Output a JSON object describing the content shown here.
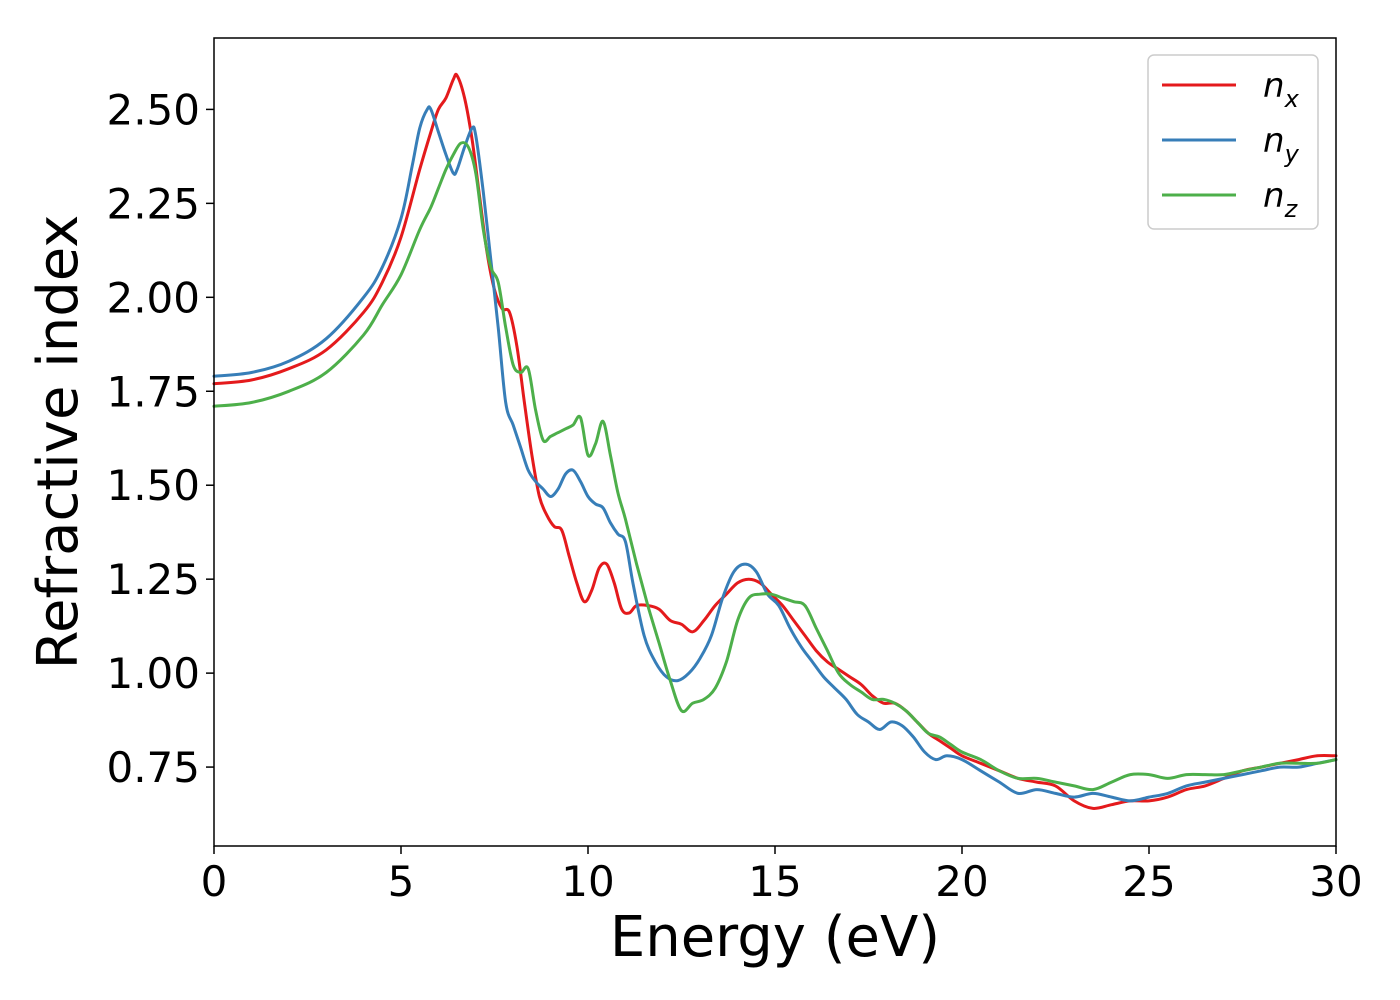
{
  "chart_data": {
    "type": "line",
    "title": "",
    "xlabel": "Energy (eV)",
    "ylabel": "Refractive index",
    "xlim": [
      0,
      30
    ],
    "ylim": [
      0.54,
      2.69
    ],
    "xticks": [
      0,
      5,
      10,
      15,
      20,
      25,
      30
    ],
    "xtick_labels": [
      "0",
      "5",
      "10",
      "15",
      "20",
      "25",
      "30"
    ],
    "yticks": [
      0.75,
      1.0,
      1.25,
      1.5,
      1.75,
      2.0,
      2.25,
      2.5
    ],
    "ytick_labels": [
      "0.75",
      "1.00",
      "1.25",
      "1.50",
      "1.75",
      "2.00",
      "2.25",
      "2.50"
    ],
    "grid": false,
    "legend_position": "top-right",
    "series": [
      {
        "name": "n_x",
        "label_base": "n",
        "label_sub": "x",
        "color": "#e41a1c",
        "x": [
          0,
          1,
          2,
          3,
          4,
          4.5,
          5,
          5.5,
          5.8,
          6.0,
          6.2,
          6.4,
          6.5,
          6.7,
          6.9,
          7.1,
          7.3,
          7.5,
          7.7,
          7.9,
          8.1,
          8.3,
          8.5,
          8.7,
          8.9,
          9.1,
          9.3,
          9.5,
          9.7,
          9.9,
          10.1,
          10.3,
          10.5,
          10.7,
          10.9,
          11.1,
          11.3,
          11.6,
          11.9,
          12.2,
          12.5,
          12.8,
          13.1,
          13.4,
          13.7,
          14.0,
          14.3,
          14.6,
          14.9,
          15.2,
          15.5,
          15.8,
          16.1,
          16.4,
          16.7,
          17.0,
          17.3,
          17.6,
          17.9,
          18.2,
          18.5,
          18.8,
          19.1,
          19.4,
          19.7,
          20.0,
          20.5,
          21.0,
          21.5,
          22.0,
          22.5,
          23.0,
          23.5,
          24.0,
          24.5,
          25.0,
          25.5,
          26.0,
          26.5,
          27.0,
          27.5,
          28.0,
          28.5,
          29.0,
          29.5,
          30.0
        ],
        "y": [
          1.77,
          1.78,
          1.81,
          1.86,
          1.96,
          2.04,
          2.16,
          2.34,
          2.44,
          2.5,
          2.53,
          2.58,
          2.59,
          2.53,
          2.42,
          2.27,
          2.12,
          2.02,
          1.97,
          1.96,
          1.87,
          1.72,
          1.58,
          1.47,
          1.42,
          1.39,
          1.38,
          1.31,
          1.24,
          1.19,
          1.22,
          1.28,
          1.29,
          1.24,
          1.17,
          1.16,
          1.18,
          1.18,
          1.17,
          1.14,
          1.13,
          1.11,
          1.14,
          1.18,
          1.21,
          1.24,
          1.25,
          1.24,
          1.21,
          1.18,
          1.14,
          1.1,
          1.06,
          1.03,
          1.01,
          0.99,
          0.97,
          0.94,
          0.92,
          0.92,
          0.9,
          0.87,
          0.84,
          0.82,
          0.8,
          0.78,
          0.76,
          0.74,
          0.72,
          0.71,
          0.7,
          0.66,
          0.64,
          0.65,
          0.66,
          0.66,
          0.67,
          0.69,
          0.7,
          0.72,
          0.74,
          0.75,
          0.76,
          0.77,
          0.78,
          0.78
        ]
      },
      {
        "name": "n_y",
        "label_base": "n",
        "label_sub": "y",
        "color": "#377eb8",
        "x": [
          0,
          1,
          2,
          3,
          4,
          4.5,
          5,
          5.3,
          5.5,
          5.7,
          5.8,
          6.0,
          6.2,
          6.4,
          6.5,
          6.7,
          6.9,
          7.0,
          7.2,
          7.4,
          7.6,
          7.8,
          8.0,
          8.2,
          8.4,
          8.6,
          8.8,
          9.0,
          9.2,
          9.4,
          9.6,
          9.8,
          10.0,
          10.2,
          10.4,
          10.6,
          10.8,
          11.0,
          11.2,
          11.5,
          11.8,
          12.1,
          12.4,
          12.7,
          13.0,
          13.3,
          13.6,
          13.9,
          14.2,
          14.5,
          14.8,
          15.1,
          15.4,
          15.7,
          16.0,
          16.3,
          16.6,
          16.9,
          17.2,
          17.5,
          17.8,
          18.1,
          18.4,
          18.7,
          19.0,
          19.3,
          19.6,
          20.0,
          20.5,
          21.0,
          21.5,
          22.0,
          22.5,
          23.0,
          23.5,
          24.0,
          24.5,
          25.0,
          25.5,
          26.0,
          26.5,
          27.0,
          27.5,
          28.0,
          28.5,
          29.0,
          29.5,
          30.0
        ],
        "y": [
          1.79,
          1.8,
          1.83,
          1.89,
          2.0,
          2.08,
          2.21,
          2.35,
          2.45,
          2.5,
          2.5,
          2.44,
          2.38,
          2.33,
          2.34,
          2.4,
          2.45,
          2.43,
          2.28,
          2.1,
          1.92,
          1.72,
          1.66,
          1.6,
          1.54,
          1.51,
          1.49,
          1.47,
          1.49,
          1.53,
          1.54,
          1.51,
          1.47,
          1.45,
          1.44,
          1.4,
          1.37,
          1.35,
          1.24,
          1.1,
          1.03,
          0.99,
          0.98,
          1.0,
          1.04,
          1.1,
          1.2,
          1.27,
          1.29,
          1.27,
          1.21,
          1.18,
          1.12,
          1.07,
          1.03,
          0.99,
          0.96,
          0.93,
          0.89,
          0.87,
          0.85,
          0.87,
          0.86,
          0.83,
          0.79,
          0.77,
          0.78,
          0.77,
          0.74,
          0.71,
          0.68,
          0.69,
          0.68,
          0.67,
          0.68,
          0.67,
          0.66,
          0.67,
          0.68,
          0.7,
          0.71,
          0.72,
          0.73,
          0.74,
          0.75,
          0.75,
          0.76,
          0.77
        ]
      },
      {
        "name": "n_z",
        "label_base": "n",
        "label_sub": "z",
        "color": "#4daf4a",
        "x": [
          0,
          1,
          2,
          3,
          4,
          4.5,
          5,
          5.5,
          5.8,
          6.0,
          6.2,
          6.4,
          6.6,
          6.8,
          7.0,
          7.2,
          7.4,
          7.6,
          7.8,
          8.0,
          8.2,
          8.4,
          8.6,
          8.8,
          9.0,
          9.2,
          9.4,
          9.6,
          9.8,
          10.0,
          10.2,
          10.4,
          10.6,
          10.8,
          11.0,
          11.3,
          11.6,
          11.9,
          12.2,
          12.5,
          12.8,
          13.1,
          13.4,
          13.7,
          14.0,
          14.3,
          14.6,
          14.9,
          15.2,
          15.5,
          15.8,
          16.1,
          16.4,
          16.7,
          17.0,
          17.3,
          17.6,
          17.9,
          18.2,
          18.5,
          18.8,
          19.1,
          19.4,
          19.7,
          20.0,
          20.5,
          21.0,
          21.5,
          22.0,
          22.5,
          23.0,
          23.5,
          24.0,
          24.5,
          25.0,
          25.5,
          26.0,
          26.5,
          27.0,
          27.5,
          28.0,
          28.5,
          29.0,
          29.5,
          30.0
        ],
        "y": [
          1.71,
          1.72,
          1.75,
          1.8,
          1.9,
          1.98,
          2.06,
          2.18,
          2.24,
          2.29,
          2.34,
          2.38,
          2.41,
          2.4,
          2.33,
          2.18,
          2.08,
          2.04,
          1.92,
          1.82,
          1.8,
          1.81,
          1.7,
          1.62,
          1.63,
          1.64,
          1.65,
          1.66,
          1.68,
          1.58,
          1.61,
          1.67,
          1.58,
          1.48,
          1.41,
          1.29,
          1.18,
          1.08,
          0.98,
          0.9,
          0.92,
          0.93,
          0.96,
          1.03,
          1.14,
          1.2,
          1.21,
          1.21,
          1.2,
          1.19,
          1.18,
          1.12,
          1.06,
          1.0,
          0.97,
          0.95,
          0.93,
          0.93,
          0.92,
          0.9,
          0.87,
          0.84,
          0.83,
          0.81,
          0.79,
          0.77,
          0.74,
          0.72,
          0.72,
          0.71,
          0.7,
          0.69,
          0.71,
          0.73,
          0.73,
          0.72,
          0.73,
          0.73,
          0.73,
          0.74,
          0.75,
          0.76,
          0.76,
          0.76,
          0.77
        ]
      }
    ]
  }
}
